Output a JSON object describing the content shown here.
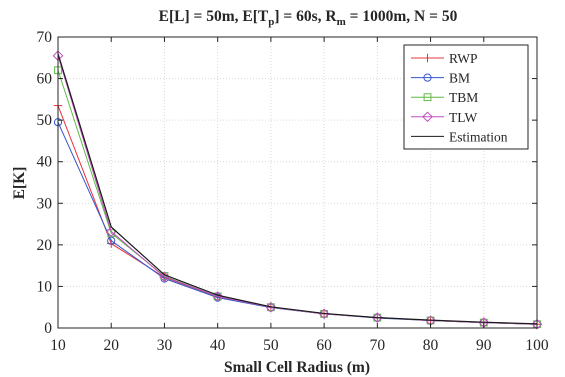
{
  "chart_data": {
    "type": "line",
    "title": {
      "prefix": "E[L] = 50m, E[T",
      "sub1": "p",
      "middle": "] = 60s, R",
      "sub2": "m",
      "suffix": " = 1000m, N = 50"
    },
    "xlabel": "Small Cell Radius (m)",
    "ylabel": "E[K]",
    "xlim": [
      10,
      100
    ],
    "ylim": [
      0,
      70
    ],
    "xticks": [
      10,
      20,
      30,
      40,
      50,
      60,
      70,
      80,
      90,
      100
    ],
    "yticks": [
      0,
      10,
      20,
      30,
      40,
      50,
      60,
      70
    ],
    "grid": true,
    "legend_position": "top-right",
    "x": [
      10,
      20,
      30,
      40,
      50,
      60,
      70,
      80,
      90,
      100
    ],
    "series": [
      {
        "name": "RWP",
        "color": "#e8333d",
        "marker": "plus",
        "values": [
          53.5,
          20.3,
          12.2,
          7.5,
          5.0,
          3.4,
          2.5,
          1.8,
          1.3,
          0.9
        ]
      },
      {
        "name": "BM",
        "color": "#3355cc",
        "marker": "circle",
        "values": [
          49.5,
          21.0,
          11.9,
          7.3,
          4.9,
          3.4,
          2.4,
          1.8,
          1.3,
          0.9
        ]
      },
      {
        "name": "TBM",
        "color": "#5fba46",
        "marker": "square",
        "values": [
          62.0,
          22.8,
          12.5,
          7.6,
          5.0,
          3.4,
          2.5,
          1.8,
          1.3,
          0.9
        ]
      },
      {
        "name": "TLW",
        "color": "#c04ec0",
        "marker": "diamond",
        "values": [
          65.5,
          23.2,
          12.3,
          7.6,
          5.0,
          3.4,
          2.5,
          1.8,
          1.3,
          0.9
        ]
      },
      {
        "name": "Estimation",
        "color": "#1a1a1a",
        "marker": "none",
        "values": [
          66.0,
          24.3,
          12.8,
          7.9,
          5.1,
          3.5,
          2.5,
          1.9,
          1.4,
          1.0
        ]
      }
    ]
  }
}
